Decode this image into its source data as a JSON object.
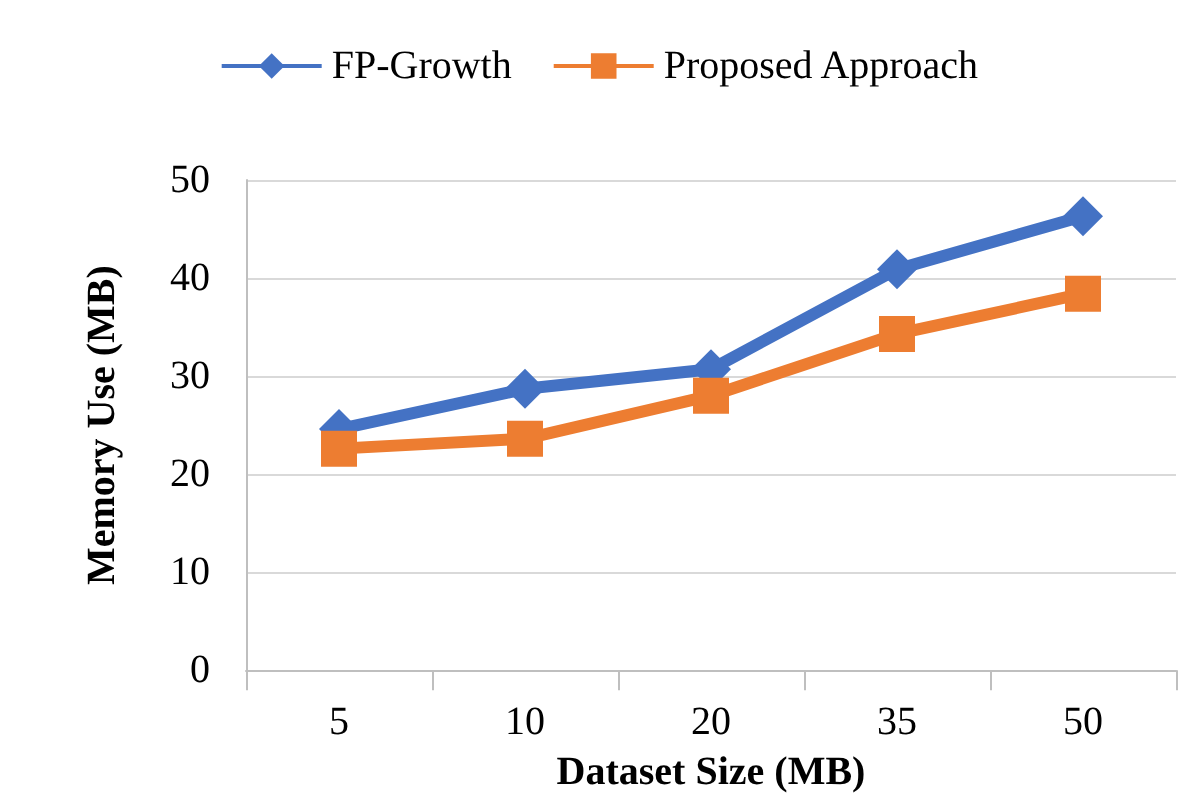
{
  "chart_data": {
    "type": "line",
    "xlabel": "Dataset Size (MB)",
    "ylabel": "Memory Use (MB)",
    "categories": [
      "5",
      "10",
      "20",
      "35",
      "50"
    ],
    "series": [
      {
        "name": "FP-Growth",
        "color": "#4472c4",
        "marker": "diamond",
        "values": [
          24.6,
          28.7,
          30.7,
          40.9,
          46.3
        ]
      },
      {
        "name": "Proposed Approach",
        "color": "#ed7d31",
        "marker": "square",
        "values": [
          22.6,
          23.6,
          28.0,
          34.3,
          38.4
        ]
      }
    ],
    "ylim": [
      0,
      50
    ],
    "yticks": [
      0,
      10,
      20,
      30,
      40,
      50
    ],
    "grid": "y",
    "legend": "top",
    "line_style": "solid"
  }
}
